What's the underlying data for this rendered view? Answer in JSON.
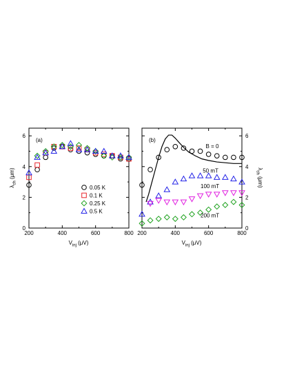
{
  "colors": {
    "black": "#000000",
    "red": "#e8232a",
    "green": "#1fa21f",
    "blue": "#2323e8",
    "magenta": "#e020e0"
  },
  "chart_data": [
    {
      "type": "scatter",
      "panel_label": "(a)",
      "xlabel_main": "V",
      "xlabel_sub": "inj",
      "xlabel_unit": " (μV)",
      "ylabel_main": "λ",
      "ylabel_sub": "ch",
      "ylabel_unit": " (μm)",
      "xlim": [
        200,
        800
      ],
      "ylim": [
        0,
        6.5
      ],
      "xticks": [
        "200",
        "400",
        "600",
        "800"
      ],
      "yticks": [
        "0",
        "2",
        "4",
        "6"
      ],
      "legend_position": "middle-right",
      "series": [
        {
          "name": "0.05 K",
          "marker": "circle",
          "color": "black",
          "x": [
            200,
            250,
            300,
            350,
            400,
            450,
            500,
            550,
            600,
            650,
            700,
            750,
            800
          ],
          "y": [
            2.8,
            3.8,
            4.6,
            5.2,
            5.3,
            5.1,
            5.0,
            4.9,
            4.8,
            4.7,
            4.7,
            4.5,
            4.5
          ]
        },
        {
          "name": "0.1 K",
          "marker": "square",
          "color": "red",
          "x": [
            200,
            250,
            300,
            350,
            400,
            450,
            500,
            550,
            600,
            650,
            700,
            750,
            800
          ],
          "y": [
            3.3,
            4.1,
            4.9,
            5.3,
            5.3,
            5.2,
            5.2,
            5.1,
            4.9,
            4.8,
            4.7,
            4.6,
            4.5
          ]
        },
        {
          "name": "0.25 K",
          "marker": "diamond",
          "color": "green",
          "x": [
            250,
            300,
            350,
            400,
            450,
            500,
            550,
            600,
            650,
            700,
            750,
            800
          ],
          "y": [
            4.7,
            5.0,
            5.3,
            5.4,
            5.3,
            5.4,
            5.2,
            5.0,
            4.7,
            4.6,
            4.6,
            4.6
          ]
        },
        {
          "name": "0.5 K",
          "marker": "triangle-up",
          "color": "blue",
          "x": [
            200,
            250,
            300,
            350,
            400,
            450,
            500,
            550,
            600,
            650,
            700,
            750,
            800
          ],
          "y": [
            3.6,
            4.6,
            4.9,
            5.0,
            5.3,
            5.5,
            5.1,
            5.1,
            5.0,
            5.0,
            4.7,
            4.7,
            4.6
          ]
        }
      ]
    },
    {
      "type": "scatter",
      "panel_label": "(b)",
      "xlabel_main": "V",
      "xlabel_sub": "inj",
      "xlabel_unit": " (μV)",
      "ylabel_main": "λ",
      "ylabel_sub": "ch",
      "ylabel_unit": " (μm)",
      "xlim": [
        200,
        800
      ],
      "ylim": [
        0,
        6.5
      ],
      "xticks": [
        "200",
        "400",
        "600",
        "800"
      ],
      "yticks": [
        "0",
        "2",
        "4",
        "6"
      ],
      "annotations": [
        {
          "text": "B = 0",
          "x": 622,
          "y": 5.2
        },
        {
          "text": "50 mT",
          "x": 612,
          "y": 3.6
        },
        {
          "text": "100 mT",
          "x": 608,
          "y": 2.6
        },
        {
          "text": "200 mT",
          "x": 608,
          "y": 0.7
        }
      ],
      "series": [
        {
          "name": "B = 0",
          "marker": "circle",
          "color": "black",
          "x": [
            200,
            250,
            300,
            350,
            400,
            450,
            500,
            550,
            600,
            650,
            700,
            750,
            800
          ],
          "y": [
            2.8,
            3.8,
            4.6,
            5.1,
            5.3,
            5.2,
            5.0,
            5.0,
            4.8,
            4.7,
            4.6,
            4.6,
            4.6
          ]
        },
        {
          "name": "50 mT",
          "marker": "triangle-up",
          "color": "blue",
          "x": [
            200,
            250,
            300,
            350,
            400,
            450,
            500,
            550,
            600,
            650,
            700,
            750,
            800
          ],
          "y": [
            0.9,
            1.7,
            2.1,
            2.5,
            3.0,
            3.2,
            3.4,
            3.4,
            3.4,
            3.3,
            3.3,
            3.2,
            3.0
          ]
        },
        {
          "name": "100 mT",
          "marker": "triangle-down",
          "color": "magenta",
          "x": [
            250,
            300,
            350,
            400,
            450,
            500,
            550,
            600,
            650,
            700,
            750,
            800
          ],
          "y": [
            1.6,
            1.8,
            1.7,
            1.7,
            1.7,
            1.9,
            2.1,
            2.2,
            2.2,
            2.3,
            2.3,
            2.3
          ]
        },
        {
          "name": "200 mT",
          "marker": "diamond",
          "color": "green",
          "x": [
            200,
            250,
            300,
            350,
            400,
            450,
            500,
            550,
            600,
            650,
            700,
            750,
            800
          ],
          "y": [
            0.3,
            0.5,
            0.6,
            0.7,
            0.6,
            0.7,
            0.9,
            1.0,
            1.2,
            1.4,
            1.5,
            1.7,
            1.5
          ]
        }
      ],
      "curve": {
        "color": "black",
        "x": [
          225,
          240,
          260,
          280,
          300,
          320,
          340,
          360,
          380,
          400,
          420,
          450,
          480,
          520,
          560,
          600,
          650,
          700,
          750,
          800
        ],
        "y": [
          1.7,
          2.2,
          3.0,
          3.8,
          4.6,
          5.3,
          5.8,
          6.05,
          6.05,
          5.85,
          5.6,
          5.25,
          4.95,
          4.7,
          4.5,
          4.4,
          4.3,
          4.25,
          4.2,
          4.2
        ]
      }
    }
  ]
}
